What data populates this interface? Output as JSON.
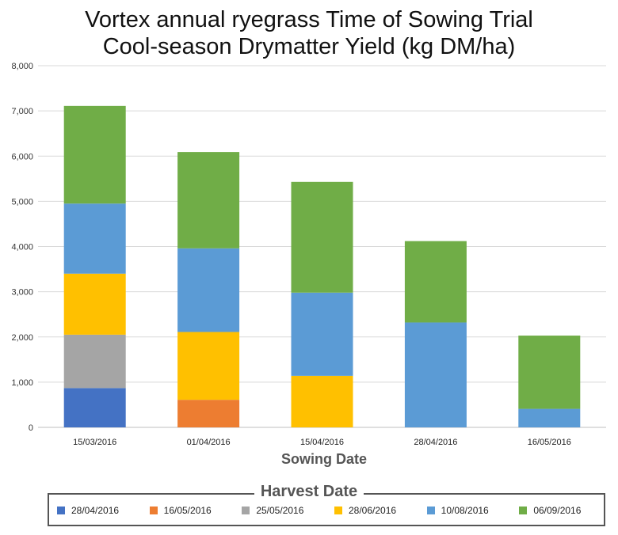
{
  "chart_data": {
    "type": "bar",
    "stacked": true,
    "title": [
      "Vortex annual ryegrass Time of Sowing Trial",
      "Cool-season Drymatter Yield (kg DM/ha)"
    ],
    "xlabel": "Sowing Date",
    "ylabel": "",
    "ylim": [
      0,
      8000
    ],
    "yticks": [
      "0",
      "1,000",
      "2,000",
      "3,000",
      "4,000",
      "5,000",
      "6,000",
      "7,000",
      "8,000"
    ],
    "grid": true,
    "categories": [
      "15/03/2016",
      "01/04/2016",
      "15/04/2016",
      "28/04/2016",
      "16/05/2016"
    ],
    "legend_title": "Harvest Date",
    "legend_position": "bottom",
    "series": [
      {
        "name": "28/04/2016",
        "color": "#4472C4",
        "values": [
          870,
          0,
          0,
          0,
          0
        ]
      },
      {
        "name": "16/05/2016",
        "color": "#ED7D31",
        "values": [
          0,
          610,
          0,
          0,
          0
        ]
      },
      {
        "name": "25/05/2016",
        "color": "#A5A5A5",
        "values": [
          1180,
          0,
          0,
          0,
          0
        ]
      },
      {
        "name": "28/06/2016",
        "color": "#FFC000",
        "values": [
          1350,
          1500,
          1140,
          0,
          0
        ]
      },
      {
        "name": "10/08/2016",
        "color": "#5B9BD5",
        "values": [
          1550,
          1850,
          1840,
          2320,
          410
        ]
      },
      {
        "name": "06/09/2016",
        "color": "#70AD47",
        "values": [
          2160,
          2130,
          2450,
          1800,
          1620
        ]
      }
    ]
  }
}
